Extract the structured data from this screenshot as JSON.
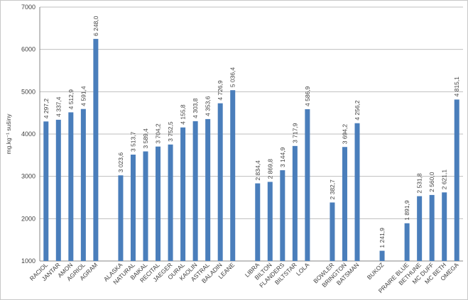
{
  "chart_data": {
    "type": "bar",
    "title": "",
    "xlabel": "",
    "ylabel": "mg.kg⁻¹ sušiny",
    "ylim": [
      1000,
      7000
    ],
    "yticks": [
      1000,
      2000,
      3000,
      4000,
      5000,
      6000,
      7000
    ],
    "grid": "horizontal",
    "legend": "none",
    "bar_color": "#4a7ebb",
    "categories": [
      "RACIOL",
      "JANTAR",
      "AMON",
      "AGRIOL",
      "AGRAM",
      "",
      "ALASKA",
      "NATURAL",
      "BAIKAL",
      "RECITAL",
      "JAEGER",
      "OURAL",
      "KAOLIN",
      "ASTRAL",
      "BALADIN",
      "LEANE",
      "",
      "LIBRA",
      "BILTON",
      "FLANDERS",
      "BILTSTAR",
      "LOLA",
      "",
      "BOWLER",
      "BRINGTON",
      "BATSMAN",
      "",
      "BUKOZ",
      "",
      "PRAIRE BLUE",
      "BETHUNE",
      "MC DUFF",
      "MC BETH",
      "OMEGA"
    ],
    "values": [
      4297.2,
      4337.4,
      4512.9,
      4591.4,
      6248.0,
      null,
      3023.6,
      3513.7,
      3589.4,
      3704.2,
      3752.5,
      4155.8,
      4303.8,
      4353.6,
      4726.9,
      5036.4,
      null,
      2834.4,
      2869.8,
      3144.9,
      3717.9,
      4586.9,
      null,
      2382.7,
      3694.2,
      4256.2,
      null,
      1241.9,
      null,
      1891.9,
      2531.8,
      2560.0,
      2621.1,
      4815.1
    ],
    "value_labels": [
      "4 297,2",
      "4 337,4",
      "4 512,9",
      "4 591,4",
      "6 248,0",
      "",
      "3 023,6",
      "3 513,7",
      "3 589,4",
      "3 704,2",
      "3 752,5",
      "4 155,8",
      "4 303,8",
      "4 353,6",
      "4 726,9",
      "5 036,4",
      "",
      "2 834,4",
      "2 869,8",
      "3 144,9",
      "3 717,9",
      "4 586,9",
      "",
      "2 382,7",
      "3 694,2",
      "4 256,2",
      "",
      "1 241,9",
      "",
      "1 891,9",
      "2 531,8",
      "2 560,0",
      "2 621,1",
      "4 815,1"
    ]
  }
}
